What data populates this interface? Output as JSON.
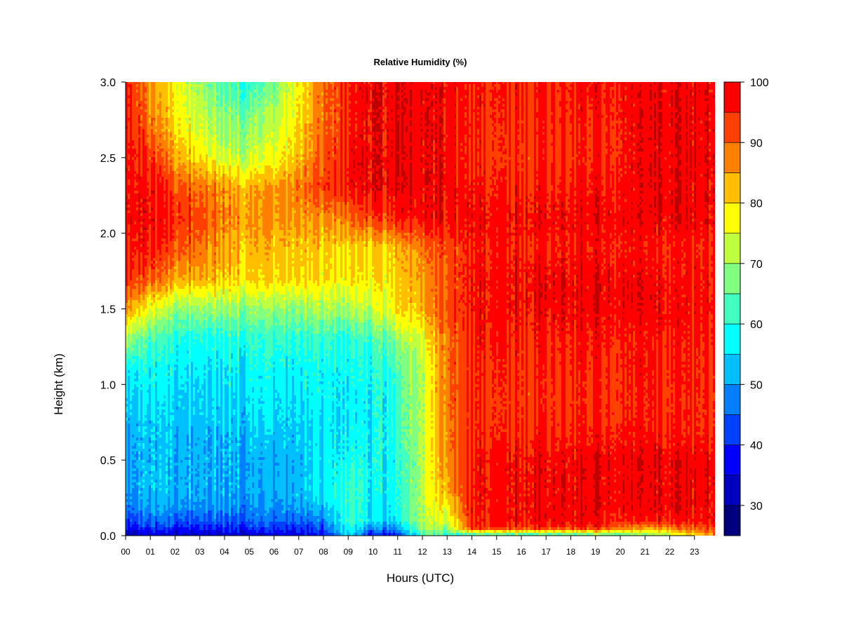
{
  "chart_data": {
    "type": "heatmap",
    "title": "Relative Humidity (%)",
    "xlabel": "Hours (UTC)",
    "ylabel": "Height (km)",
    "x_ticks": [
      "00",
      "01",
      "02",
      "03",
      "04",
      "05",
      "06",
      "07",
      "08",
      "09",
      "10",
      "11",
      "12",
      "13",
      "14",
      "15",
      "16",
      "17",
      "18",
      "19",
      "20",
      "21",
      "22",
      "23"
    ],
    "y_ticks": [
      "0.0",
      "0.5",
      "1.0",
      "1.5",
      "2.0",
      "2.5",
      "3.0"
    ],
    "xlim": [
      0,
      24
    ],
    "ylim": [
      0,
      3
    ],
    "colorbar": {
      "ticks": [
        "30",
        "40",
        "50",
        "60",
        "70",
        "80",
        "90",
        "100"
      ],
      "range": [
        25,
        100
      ],
      "step": 5,
      "colors": [
        "#00007f",
        "#0000bf",
        "#0000ff",
        "#0040ff",
        "#0080ff",
        "#00bfff",
        "#00ffff",
        "#40ffbf",
        "#80ff80",
        "#bfff40",
        "#ffff00",
        "#ffbf00",
        "#ff8000",
        "#ff4000",
        "#ff0000",
        "#bf0000",
        "#7f0000"
      ]
    },
    "heights_km": [
      0.0,
      0.05,
      0.1,
      0.2,
      0.3,
      0.5,
      0.7,
      0.9,
      1.1,
      1.3,
      1.5,
      1.7,
      1.9,
      2.1,
      2.3,
      2.5,
      2.7,
      2.9,
      3.0
    ],
    "hours": [
      0,
      1,
      2,
      3,
      4,
      5,
      6,
      7,
      8,
      9,
      10,
      11,
      12,
      13,
      14,
      15,
      16,
      17,
      18,
      19,
      20,
      21,
      22,
      23,
      23.9
    ],
    "values": [
      [
        32,
        32,
        33,
        33,
        33,
        33,
        34,
        35,
        37,
        55,
        37,
        40,
        62,
        62,
        60,
        60,
        60,
        60,
        60,
        62,
        62,
        65,
        70,
        80,
        88
      ],
      [
        38,
        40,
        40,
        40,
        40,
        40,
        40,
        40,
        42,
        58,
        48,
        48,
        70,
        70,
        95,
        95,
        95,
        95,
        95,
        95,
        90,
        85,
        88,
        90,
        95
      ],
      [
        42,
        45,
        45,
        45,
        45,
        45,
        45,
        45,
        47,
        62,
        55,
        55,
        72,
        75,
        96,
        98,
        98,
        98,
        98,
        97,
        96,
        96,
        96,
        96,
        98
      ],
      [
        48,
        50,
        50,
        50,
        50,
        48,
        48,
        50,
        52,
        62,
        55,
        58,
        72,
        80,
        97,
        98,
        98,
        98,
        98,
        98,
        98,
        98,
        98,
        98,
        98
      ],
      [
        50,
        52,
        52,
        52,
        52,
        50,
        50,
        52,
        55,
        62,
        57,
        58,
        72,
        85,
        96,
        98,
        98,
        98,
        98,
        98,
        98,
        98,
        98,
        98,
        98
      ],
      [
        50,
        52,
        52,
        52,
        52,
        50,
        50,
        52,
        55,
        58,
        57,
        58,
        72,
        88,
        96,
        98,
        98,
        98,
        98,
        98,
        98,
        98,
        98,
        98,
        98
      ],
      [
        52,
        52,
        53,
        53,
        53,
        53,
        53,
        53,
        55,
        56,
        57,
        60,
        72,
        88,
        95,
        96,
        95,
        96,
        95,
        95,
        96,
        96,
        95,
        95,
        95
      ],
      [
        55,
        55,
        55,
        55,
        55,
        55,
        55,
        55,
        56,
        56,
        57,
        60,
        72,
        90,
        95,
        95,
        94,
        94,
        94,
        94,
        95,
        95,
        94,
        94,
        95
      ],
      [
        58,
        57,
        57,
        57,
        57,
        57,
        57,
        57,
        57,
        57,
        58,
        62,
        72,
        90,
        95,
        96,
        95,
        95,
        95,
        95,
        95,
        96,
        95,
        95,
        95
      ],
      [
        72,
        62,
        60,
        60,
        60,
        60,
        60,
        60,
        60,
        60,
        62,
        68,
        75,
        90,
        96,
        97,
        96,
        96,
        96,
        96,
        96,
        96,
        96,
        95,
        96
      ],
      [
        88,
        75,
        70,
        70,
        70,
        68,
        68,
        68,
        70,
        70,
        72,
        78,
        84,
        92,
        97,
        98,
        98,
        98,
        98,
        98,
        98,
        98,
        97,
        96,
        97
      ],
      [
        95,
        90,
        85,
        85,
        82,
        80,
        80,
        80,
        78,
        78,
        78,
        80,
        85,
        92,
        97,
        98,
        98,
        98,
        98,
        98,
        98,
        98,
        96,
        96,
        97
      ],
      [
        97,
        95,
        92,
        90,
        85,
        82,
        82,
        82,
        80,
        80,
        80,
        82,
        88,
        93,
        96,
        97,
        96,
        96,
        96,
        96,
        96,
        96,
        95,
        95,
        96
      ],
      [
        98,
        97,
        95,
        93,
        88,
        85,
        85,
        85,
        85,
        88,
        92,
        95,
        97,
        98,
        98,
        98,
        98,
        98,
        98,
        98,
        98,
        98,
        98,
        98,
        98
      ],
      [
        98,
        96,
        93,
        90,
        86,
        83,
        85,
        88,
        92,
        96,
        98,
        98,
        98,
        98,
        97,
        96,
        96,
        96,
        96,
        96,
        97,
        98,
        98,
        98,
        98
      ],
      [
        98,
        93,
        85,
        80,
        74,
        72,
        75,
        82,
        90,
        96,
        98,
        98,
        98,
        98,
        95,
        95,
        94,
        95,
        94,
        95,
        96,
        98,
        98,
        98,
        98
      ],
      [
        98,
        88,
        80,
        75,
        70,
        68,
        72,
        80,
        88,
        95,
        98,
        98,
        98,
        98,
        96,
        95,
        95,
        95,
        95,
        95,
        96,
        98,
        98,
        98,
        98
      ],
      [
        98,
        85,
        78,
        72,
        66,
        62,
        68,
        78,
        88,
        95,
        98,
        98,
        98,
        98,
        96,
        96,
        96,
        96,
        96,
        96,
        97,
        98,
        98,
        98,
        98
      ],
      [
        98,
        85,
        78,
        70,
        64,
        60,
        66,
        78,
        88,
        95,
        98,
        98,
        98,
        98,
        96,
        96,
        96,
        96,
        96,
        96,
        97,
        98,
        98,
        98,
        98
      ]
    ]
  }
}
